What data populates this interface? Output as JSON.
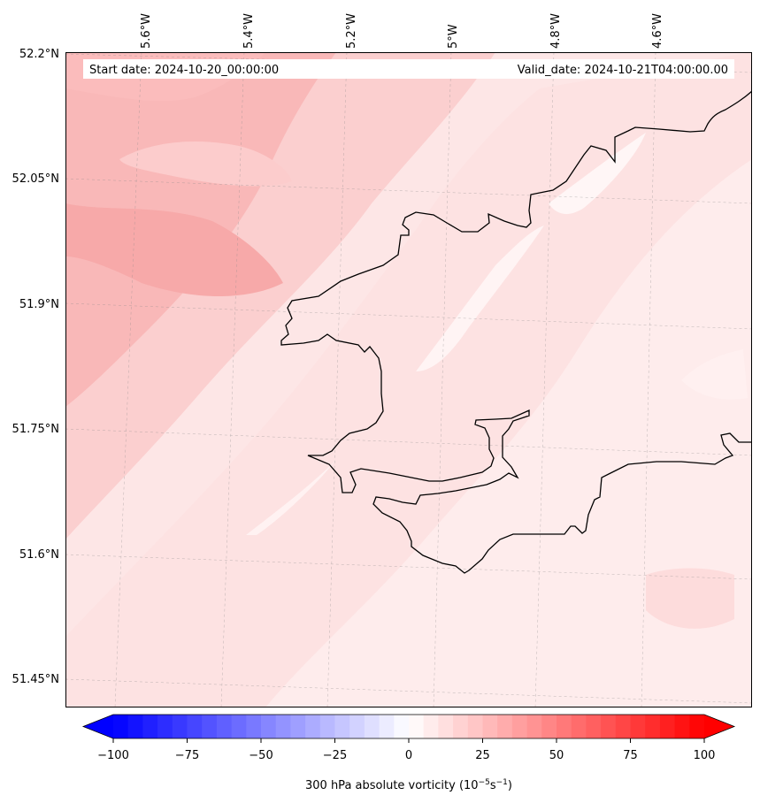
{
  "header": {
    "start_label": "Start date: 2024-10-20_00:00:00",
    "valid_label": "Valid_date: 2024-10-21T04:00:00.00"
  },
  "axes": {
    "lon_labels": [
      "5.6°W",
      "5.4°W",
      "5.2°W",
      "5°W",
      "4.8°W",
      "4.6°W"
    ],
    "lat_labels": [
      "52.2°N",
      "52.05°N",
      "51.9°N",
      "51.75°N",
      "51.6°N",
      "51.45°N"
    ]
  },
  "colorbar": {
    "ticks": [
      "−100",
      "−75",
      "−50",
      "−25",
      "0",
      "25",
      "50",
      "75",
      "100"
    ],
    "label_main": "300 hPa absolute vorticity (10",
    "label_exp1": "−5",
    "label_mid": "s",
    "label_exp2": "−1",
    "label_end": ")",
    "min": -100,
    "max": 100,
    "color_low": "#0000ff",
    "color_mid": "#ffffff",
    "color_high": "#ff0000"
  },
  "colors": {
    "coastline": "#000000",
    "field_background": "#fde4e4"
  }
}
